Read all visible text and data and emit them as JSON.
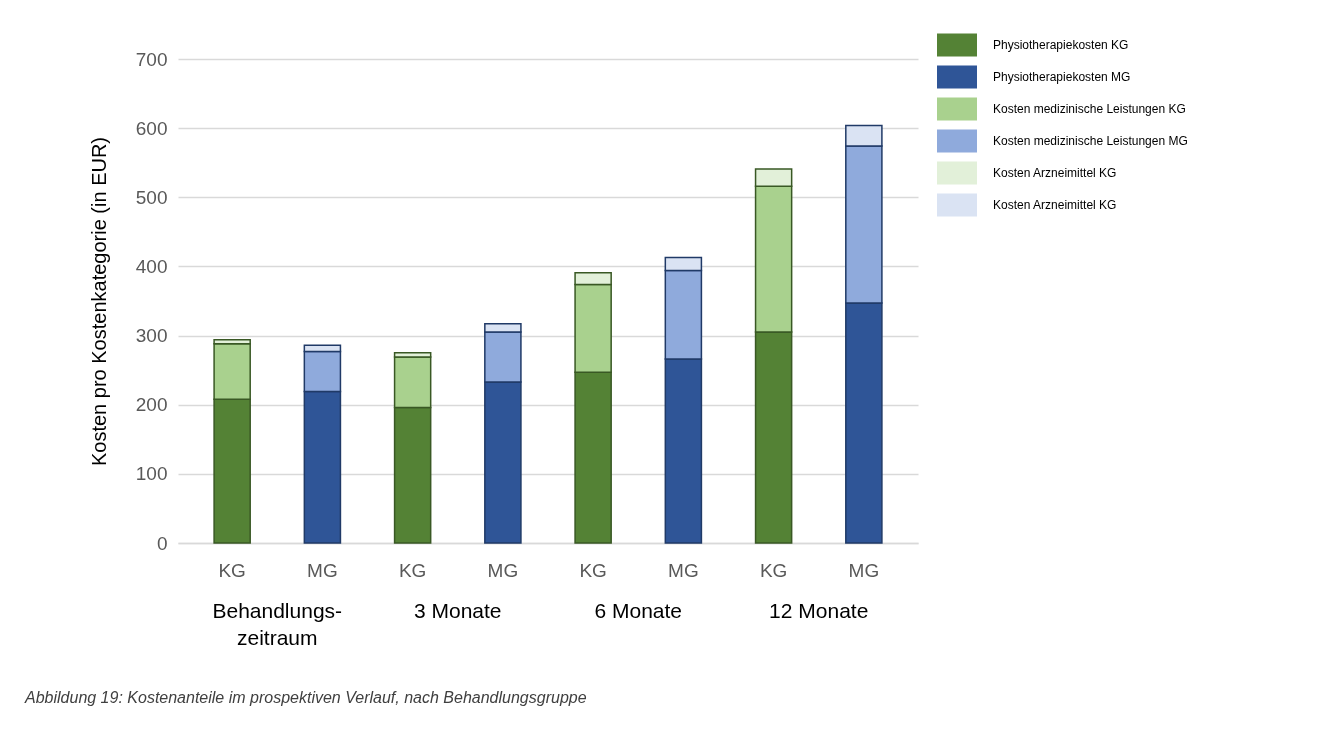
{
  "chart_data": {
    "type": "bar",
    "stacked": true,
    "categories": [
      "KG",
      "MG",
      "KG",
      "MG",
      "KG",
      "MG",
      "KG",
      "MG"
    ],
    "series": [
      {
        "name": "Physiotherapiekosten KG",
        "color": "#548235",
        "values": [
          208,
          null,
          196,
          null,
          247,
          null,
          305,
          null
        ]
      },
      {
        "name": "Physiotherapiekosten MG",
        "color": "#2f5597",
        "values": [
          null,
          219,
          null,
          233,
          null,
          266,
          null,
          347
        ]
      },
      {
        "name": "Kosten medizinische Leistungen KG",
        "color": "#a9d18e",
        "values": [
          80,
          null,
          73,
          null,
          127,
          null,
          211,
          null
        ]
      },
      {
        "name": "Kosten medizinische Leistungen MG",
        "color": "#8faadc",
        "values": [
          null,
          58,
          null,
          72,
          null,
          128,
          null,
          227
        ]
      },
      {
        "name": "Kosten Arzneimittel KG",
        "color": "#e2f0d9",
        "values": [
          6,
          null,
          6,
          null,
          17,
          null,
          25,
          null
        ]
      },
      {
        "name": "Kosten Arzneimittel KG",
        "color": "#dae3f3",
        "values": [
          null,
          9,
          null,
          12,
          null,
          19,
          null,
          30
        ]
      }
    ],
    "ylabel": "Kosten pro Kostenkategorie (in EUR)",
    "ylim": [
      0,
      700
    ],
    "yticks": [
      0,
      100,
      200,
      300,
      400,
      500,
      600,
      700
    ],
    "grid": "y",
    "legend": "top right",
    "annotations": [
      "Behandlungs-\nzeitraum",
      "3 Monate",
      "6 Monate",
      "12 Monate",
      "Abbildung 19: Kostenanteile im prospektiven Verlauf, nach Behandlungsgruppe"
    ]
  }
}
